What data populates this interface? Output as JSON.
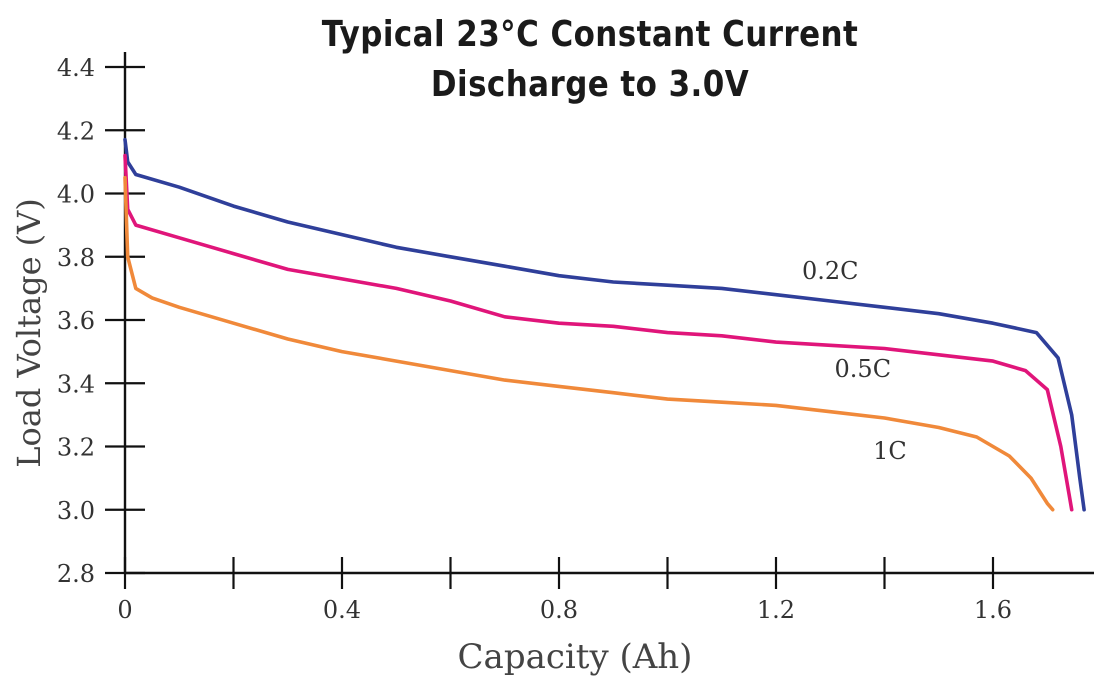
{
  "chart_data": {
    "type": "line",
    "title_line1": "Typical 23°C Constant Current",
    "title_line2": "Discharge to 3.0V",
    "xlabel": "Capacity (Ah)",
    "ylabel": "Load Voltage (V)",
    "xlim": [
      0,
      1.8
    ],
    "ylim": [
      2.8,
      4.4
    ],
    "x_tick_labels": [
      "0",
      "0.4",
      "0.8",
      "1.2",
      "1.6"
    ],
    "x_tick_values": [
      0,
      0.4,
      0.8,
      1.2,
      1.6
    ],
    "x_minor_ticks": [
      0.2,
      0.6,
      1.0,
      1.4
    ],
    "y_tick_labels": [
      "2.8",
      "3.0",
      "3.2",
      "3.4",
      "3.6",
      "3.8",
      "4.0",
      "4.2",
      "4.4"
    ],
    "y_tick_values": [
      2.8,
      3.0,
      3.2,
      3.4,
      3.6,
      3.8,
      4.0,
      4.2,
      4.4
    ],
    "grid": false,
    "series": [
      {
        "name": "0.2C",
        "color": "#2f3f9a",
        "label_at": [
          1.3,
          3.73
        ],
        "points": [
          [
            0,
            4.17
          ],
          [
            0.005,
            4.1
          ],
          [
            0.02,
            4.06
          ],
          [
            0.1,
            4.02
          ],
          [
            0.2,
            3.96
          ],
          [
            0.3,
            3.91
          ],
          [
            0.4,
            3.87
          ],
          [
            0.5,
            3.83
          ],
          [
            0.6,
            3.8
          ],
          [
            0.7,
            3.77
          ],
          [
            0.8,
            3.74
          ],
          [
            0.9,
            3.72
          ],
          [
            1.0,
            3.71
          ],
          [
            1.1,
            3.7
          ],
          [
            1.2,
            3.68
          ],
          [
            1.3,
            3.66
          ],
          [
            1.4,
            3.64
          ],
          [
            1.5,
            3.62
          ],
          [
            1.6,
            3.59
          ],
          [
            1.68,
            3.56
          ],
          [
            1.72,
            3.48
          ],
          [
            1.745,
            3.3
          ],
          [
            1.76,
            3.1
          ],
          [
            1.768,
            3.0
          ]
        ]
      },
      {
        "name": "0.5C",
        "color": "#e0157a",
        "label_at": [
          1.36,
          3.42
        ],
        "points": [
          [
            0,
            4.12
          ],
          [
            0.005,
            3.95
          ],
          [
            0.02,
            3.9
          ],
          [
            0.1,
            3.86
          ],
          [
            0.2,
            3.81
          ],
          [
            0.3,
            3.76
          ],
          [
            0.4,
            3.73
          ],
          [
            0.5,
            3.7
          ],
          [
            0.6,
            3.66
          ],
          [
            0.7,
            3.61
          ],
          [
            0.8,
            3.59
          ],
          [
            0.9,
            3.58
          ],
          [
            1.0,
            3.56
          ],
          [
            1.1,
            3.55
          ],
          [
            1.2,
            3.53
          ],
          [
            1.3,
            3.52
          ],
          [
            1.4,
            3.51
          ],
          [
            1.5,
            3.49
          ],
          [
            1.6,
            3.47
          ],
          [
            1.66,
            3.44
          ],
          [
            1.7,
            3.38
          ],
          [
            1.725,
            3.2
          ],
          [
            1.74,
            3.05
          ],
          [
            1.745,
            3.0
          ]
        ]
      },
      {
        "name": "1C",
        "color": "#f0893a",
        "label_at": [
          1.41,
          3.16
        ],
        "points": [
          [
            0,
            4.05
          ],
          [
            0.005,
            3.8
          ],
          [
            0.02,
            3.7
          ],
          [
            0.05,
            3.67
          ],
          [
            0.1,
            3.64
          ],
          [
            0.2,
            3.59
          ],
          [
            0.3,
            3.54
          ],
          [
            0.4,
            3.5
          ],
          [
            0.5,
            3.47
          ],
          [
            0.6,
            3.44
          ],
          [
            0.7,
            3.41
          ],
          [
            0.8,
            3.39
          ],
          [
            0.9,
            3.37
          ],
          [
            1.0,
            3.35
          ],
          [
            1.1,
            3.34
          ],
          [
            1.2,
            3.33
          ],
          [
            1.3,
            3.31
          ],
          [
            1.4,
            3.29
          ],
          [
            1.5,
            3.26
          ],
          [
            1.57,
            3.23
          ],
          [
            1.63,
            3.17
          ],
          [
            1.67,
            3.1
          ],
          [
            1.7,
            3.02
          ],
          [
            1.71,
            3.0
          ]
        ]
      }
    ]
  }
}
